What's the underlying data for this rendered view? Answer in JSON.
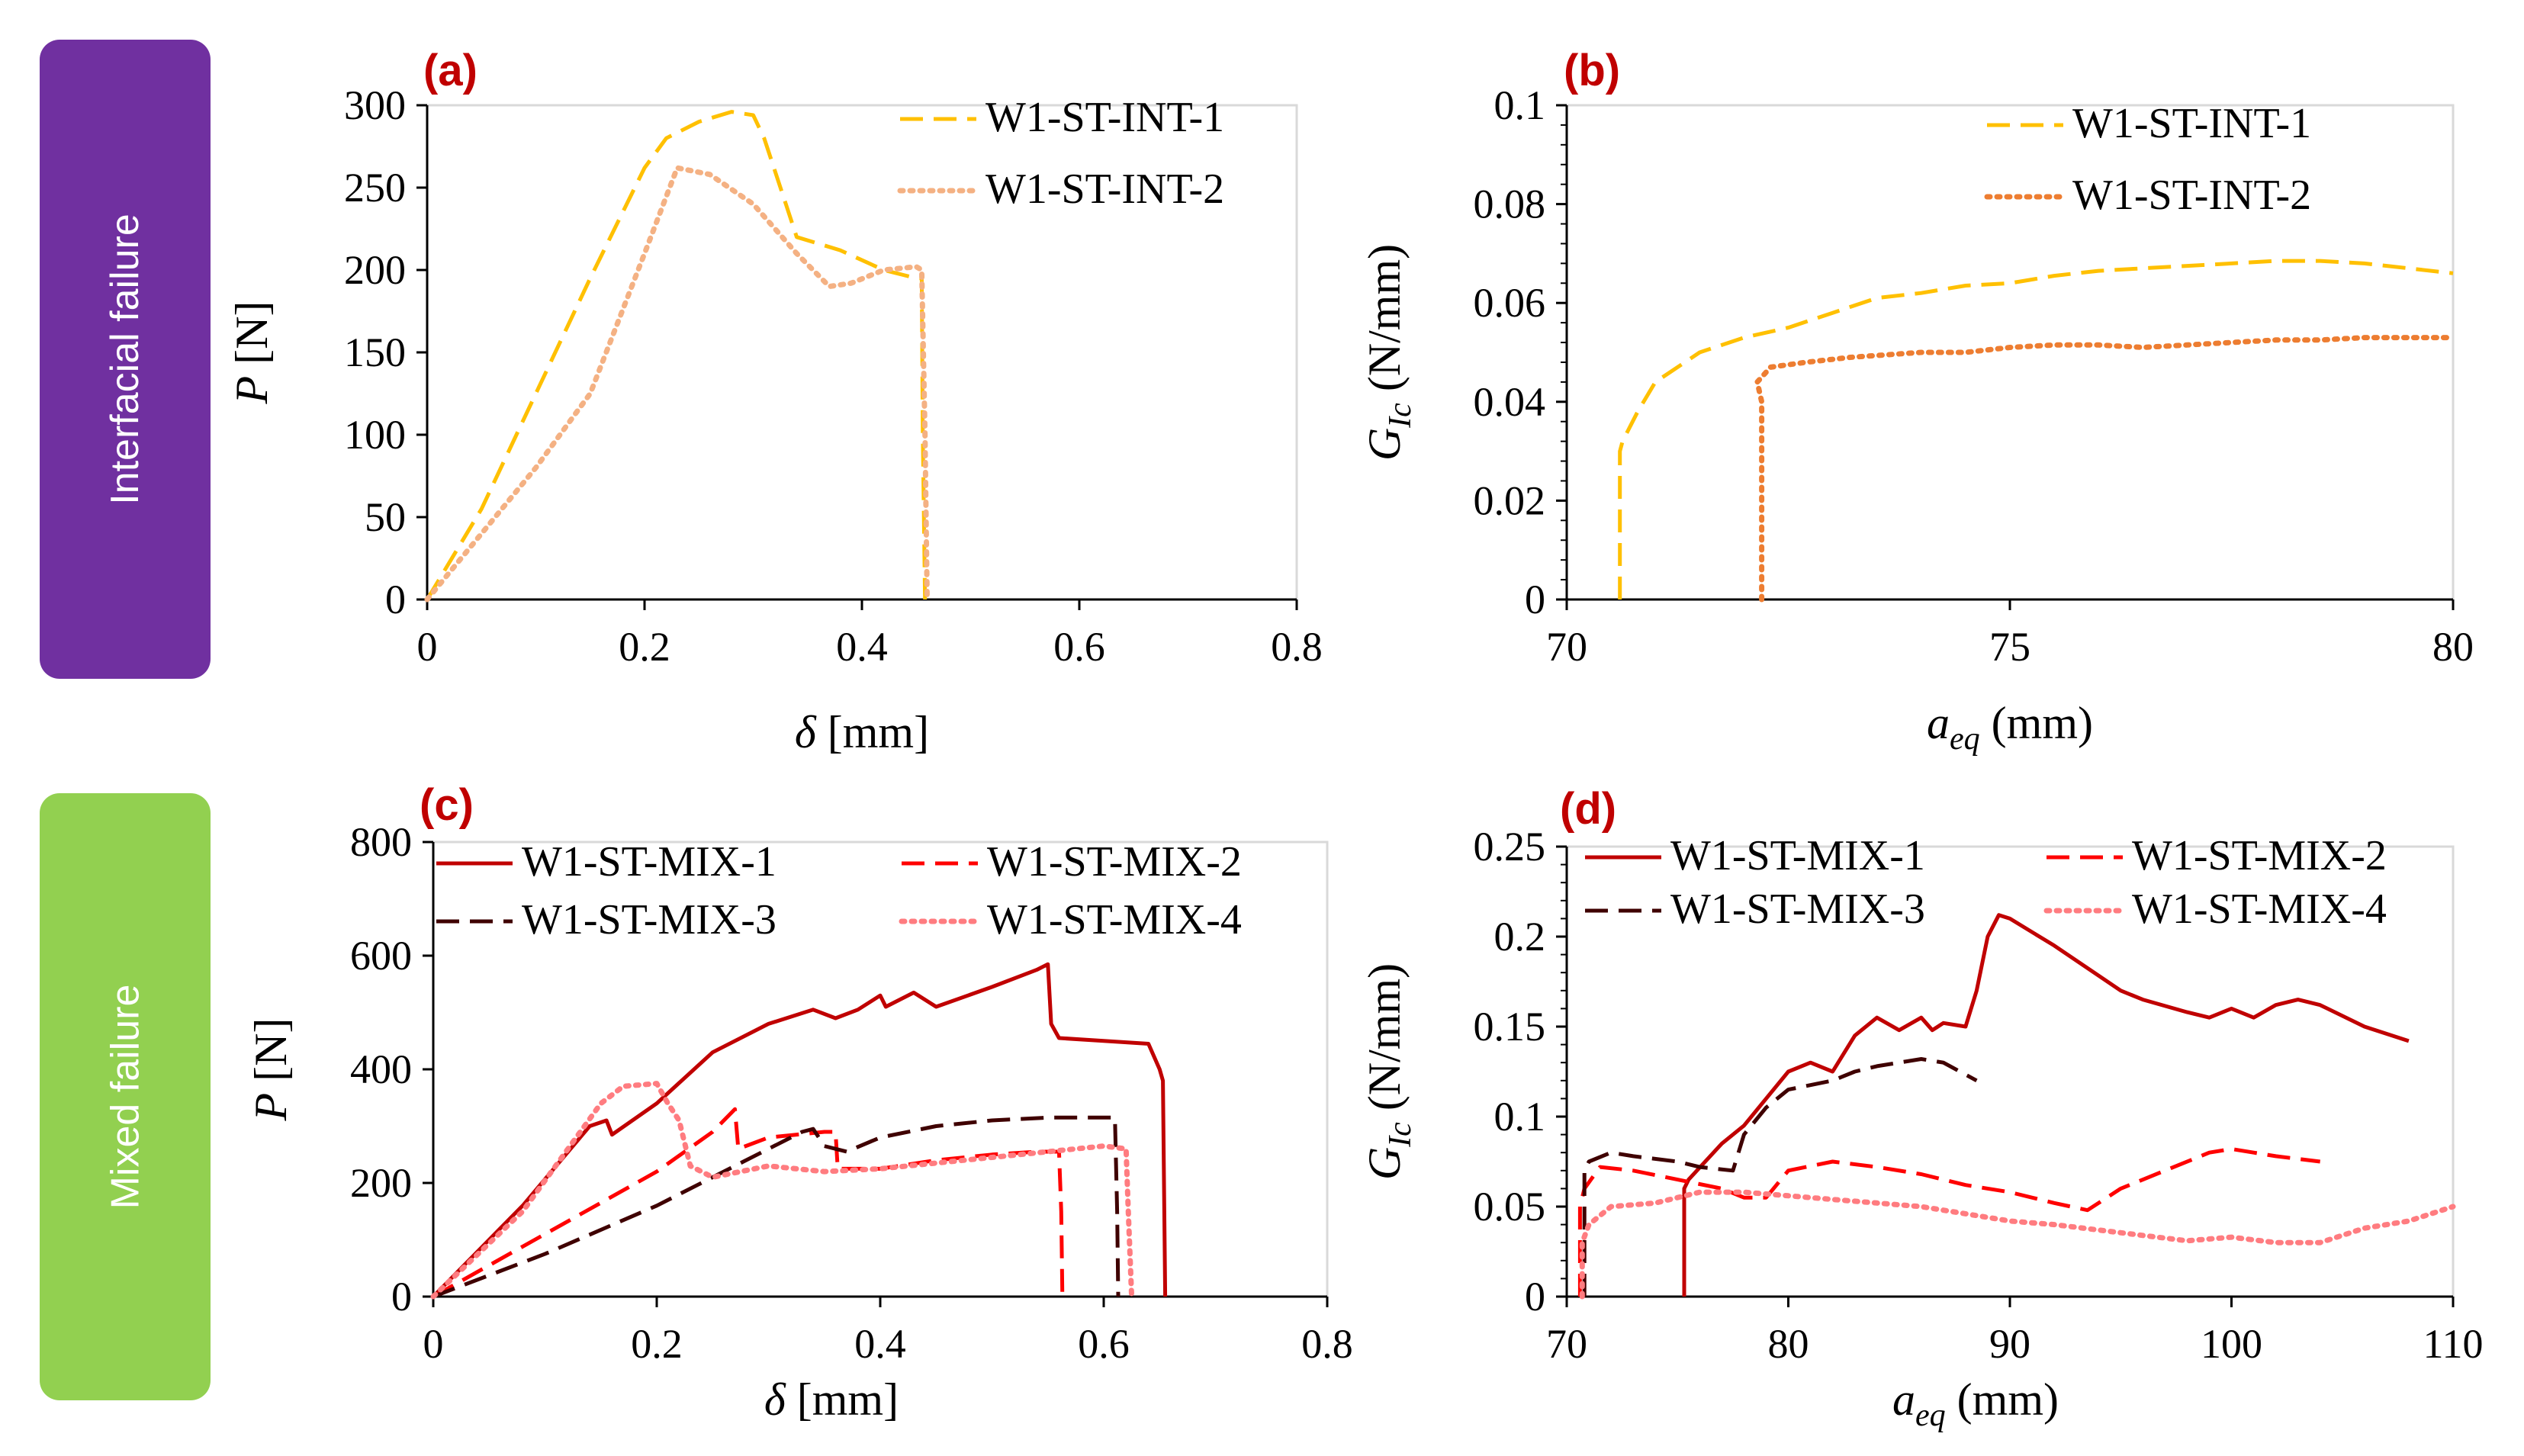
{
  "side_labels": [
    {
      "text": "Interfacial failure",
      "color": "#7030a0"
    },
    {
      "text": "Mixed failure",
      "color": "#92d050"
    }
  ],
  "chart_data": [
    {
      "panel": "(a)",
      "type": "line",
      "xlabel_symbol": "δ",
      "xlabel_unit": "[mm]",
      "ylabel_symbol": "P",
      "ylabel_unit": "[N]",
      "xlim": [
        0,
        0.8
      ],
      "ylim": [
        0,
        300
      ],
      "xticks": [
        0,
        0.2,
        0.4,
        0.6,
        0.8
      ],
      "xtick_labels": [
        "0",
        "0.2",
        "0.4",
        "0.6",
        "0.8"
      ],
      "yticks": [
        0,
        50,
        100,
        150,
        200,
        250,
        300
      ],
      "ytick_labels": [
        "0",
        "50",
        "100",
        "150",
        "200",
        "250",
        "300"
      ],
      "legend_position": "top-right",
      "legend_columns": 1,
      "series": [
        {
          "name": "W1-ST-INT-1",
          "color": "#ffc000",
          "style": "dashed",
          "x": [
            0,
            0.05,
            0.1,
            0.15,
            0.2,
            0.22,
            0.25,
            0.28,
            0.3,
            0.31,
            0.33,
            0.34,
            0.38,
            0.42,
            0.45,
            0.455,
            0.456,
            0.458
          ],
          "y": [
            0,
            55,
            125,
            195,
            262,
            280,
            290,
            296,
            294,
            280,
            240,
            220,
            212,
            200,
            195,
            195,
            100,
            0
          ]
        },
        {
          "name": "W1-ST-INT-2",
          "color": "#f4b183",
          "style": "dotted",
          "x": [
            0,
            0.05,
            0.1,
            0.15,
            0.2,
            0.23,
            0.26,
            0.3,
            0.34,
            0.37,
            0.39,
            0.42,
            0.45,
            0.455,
            0.458,
            0.46
          ],
          "y": [
            0,
            40,
            80,
            125,
            210,
            262,
            258,
            240,
            210,
            190,
            192,
            200,
            202,
            200,
            100,
            0
          ]
        }
      ]
    },
    {
      "panel": "(b)",
      "type": "line",
      "xlabel_symbol": "a",
      "xlabel_sub": "eq",
      "xlabel_unit": "(mm)",
      "ylabel_symbol": "G",
      "ylabel_sub": "Ic",
      "ylabel_unit": "(N/mm)",
      "xlim": [
        70,
        80
      ],
      "ylim": [
        0,
        0.1
      ],
      "xticks": [
        70,
        75,
        80
      ],
      "xtick_labels": [
        "70",
        "75",
        "80"
      ],
      "yticks": [
        0,
        0.02,
        0.04,
        0.06,
        0.08,
        0.1
      ],
      "ytick_labels": [
        "0",
        "0.02",
        "0.04",
        "0.06",
        "0.08",
        "0.1"
      ],
      "legend_position": "top-right",
      "legend_columns": 1,
      "series": [
        {
          "name": "W1-ST-INT-1",
          "color": "#ffc000",
          "style": "dashed",
          "x": [
            70.6,
            70.6,
            70.63,
            70.8,
            71,
            71.5,
            72,
            72.5,
            73,
            73.5,
            74,
            74.5,
            75,
            75.5,
            76,
            76.5,
            77,
            77.5,
            78,
            78.5,
            79,
            79.5,
            80
          ],
          "y": [
            0,
            0.03,
            0.032,
            0.038,
            0.044,
            0.05,
            0.053,
            0.055,
            0.058,
            0.061,
            0.062,
            0.0635,
            0.064,
            0.0655,
            0.0665,
            0.067,
            0.0675,
            0.068,
            0.0685,
            0.0685,
            0.068,
            0.067,
            0.066
          ]
        },
        {
          "name": "W1-ST-INT-2",
          "color": "#ed7d31",
          "style": "dotted",
          "x": [
            72.2,
            72.2,
            72.15,
            72.3,
            72.7,
            73.2,
            74,
            74.5,
            75,
            75.5,
            76,
            76.5,
            77,
            77.5,
            78,
            78.5,
            79,
            79.5,
            80
          ],
          "y": [
            0,
            0.04,
            0.044,
            0.047,
            0.048,
            0.049,
            0.05,
            0.05,
            0.051,
            0.0515,
            0.0515,
            0.051,
            0.0515,
            0.052,
            0.0525,
            0.0525,
            0.053,
            0.053,
            0.053
          ]
        }
      ]
    },
    {
      "panel": "(c)",
      "type": "line",
      "xlabel_symbol": "δ",
      "xlabel_unit": "[mm]",
      "ylabel_symbol": "P",
      "ylabel_unit": "[N]",
      "xlim": [
        0,
        0.8
      ],
      "ylim": [
        0,
        800
      ],
      "xticks": [
        0,
        0.2,
        0.4,
        0.6,
        0.8
      ],
      "xtick_labels": [
        "0",
        "0.2",
        "0.4",
        "0.6",
        "0.8"
      ],
      "yticks": [
        0,
        200,
        400,
        600,
        800
      ],
      "ytick_labels": [
        "0",
        "200",
        "400",
        "600",
        "800"
      ],
      "legend_position": "top",
      "legend_columns": 2,
      "series": [
        {
          "name": "W1-ST-MIX-1",
          "color": "#c00000",
          "style": "solid",
          "x": [
            0,
            0.08,
            0.14,
            0.155,
            0.16,
            0.2,
            0.25,
            0.3,
            0.34,
            0.36,
            0.38,
            0.4,
            0.405,
            0.43,
            0.45,
            0.5,
            0.54,
            0.55,
            0.553,
            0.56,
            0.6,
            0.64,
            0.65,
            0.653,
            0.655
          ],
          "y": [
            0,
            160,
            300,
            310,
            285,
            340,
            430,
            480,
            505,
            490,
            505,
            530,
            510,
            535,
            510,
            545,
            575,
            585,
            480,
            455,
            450,
            445,
            400,
            380,
            0
          ]
        },
        {
          "name": "W1-ST-MIX-2",
          "color": "#ff0000",
          "style": "dashed",
          "x": [
            0,
            0.1,
            0.2,
            0.25,
            0.27,
            0.273,
            0.3,
            0.35,
            0.36,
            0.362,
            0.4,
            0.45,
            0.5,
            0.54,
            0.56,
            0.562,
            0.563
          ],
          "y": [
            0,
            110,
            220,
            290,
            330,
            260,
            280,
            290,
            290,
            225,
            225,
            240,
            250,
            255,
            255,
            150,
            0
          ]
        },
        {
          "name": "W1-ST-MIX-3",
          "color": "#3f0000",
          "style": "dashed",
          "x": [
            0,
            0.1,
            0.2,
            0.25,
            0.3,
            0.33,
            0.34,
            0.35,
            0.37,
            0.4,
            0.45,
            0.5,
            0.55,
            0.6,
            0.61,
            0.612,
            0.613
          ],
          "y": [
            0,
            75,
            160,
            210,
            260,
            290,
            295,
            265,
            255,
            280,
            300,
            310,
            315,
            315,
            315,
            150,
            0
          ]
        },
        {
          "name": "W1-ST-MIX-4",
          "color": "#ff7c80",
          "style": "dotted",
          "x": [
            0,
            0.08,
            0.15,
            0.17,
            0.2,
            0.21,
            0.22,
            0.23,
            0.25,
            0.3,
            0.35,
            0.4,
            0.45,
            0.5,
            0.55,
            0.6,
            0.62,
            0.622,
            0.625
          ],
          "y": [
            0,
            150,
            340,
            370,
            375,
            340,
            310,
            230,
            210,
            230,
            220,
            225,
            235,
            245,
            255,
            265,
            260,
            150,
            0
          ]
        }
      ]
    },
    {
      "panel": "(d)",
      "type": "line",
      "xlabel_symbol": "a",
      "xlabel_sub": "eq",
      "xlabel_unit": "(mm)",
      "ylabel_symbol": "G",
      "ylabel_sub": "Ic",
      "ylabel_unit": "(N/mm)",
      "xlim": [
        70,
        110
      ],
      "ylim": [
        0,
        0.25
      ],
      "xticks": [
        70,
        80,
        90,
        100,
        110
      ],
      "xtick_labels": [
        "70",
        "80",
        "90",
        "100",
        "110"
      ],
      "yticks": [
        0,
        0.05,
        0.1,
        0.15,
        0.2,
        0.25
      ],
      "ytick_labels": [
        "0",
        "0.05",
        "0.1",
        "0.15",
        "0.2",
        "0.25"
      ],
      "legend_position": "top",
      "legend_columns": 2,
      "series": [
        {
          "name": "W1-ST-MIX-1",
          "color": "#c00000",
          "style": "solid",
          "x": [
            75.3,
            75.3,
            75.5,
            77,
            78,
            79,
            80,
            81,
            82,
            83,
            84,
            85,
            86,
            86.5,
            87,
            88,
            88.5,
            89,
            89.5,
            90,
            92,
            95,
            96,
            98,
            99,
            100,
            101,
            102,
            103,
            104,
            106,
            108
          ],
          "y": [
            0,
            0.06,
            0.065,
            0.085,
            0.095,
            0.11,
            0.125,
            0.13,
            0.125,
            0.145,
            0.155,
            0.148,
            0.155,
            0.148,
            0.152,
            0.15,
            0.17,
            0.2,
            0.212,
            0.21,
            0.195,
            0.17,
            0.165,
            0.158,
            0.155,
            0.16,
            0.155,
            0.162,
            0.165,
            0.162,
            0.15,
            0.142
          ]
        },
        {
          "name": "W1-ST-MIX-2",
          "color": "#ff0000",
          "style": "dashed",
          "x": [
            70.6,
            70.6,
            70.8,
            71.5,
            73,
            75,
            77,
            78,
            79,
            80,
            82,
            84,
            86,
            88,
            90,
            92,
            93.5,
            95,
            97,
            99,
            100,
            101,
            102,
            104
          ],
          "y": [
            0,
            0.05,
            0.06,
            0.072,
            0.07,
            0.065,
            0.06,
            0.055,
            0.055,
            0.07,
            0.075,
            0.072,
            0.068,
            0.062,
            0.058,
            0.052,
            0.048,
            0.06,
            0.07,
            0.08,
            0.082,
            0.08,
            0.078,
            0.075
          ]
        },
        {
          "name": "W1-ST-MIX-3",
          "color": "#3f0000",
          "style": "dashed",
          "x": [
            70.8,
            70.8,
            71,
            72,
            73,
            75,
            76,
            77.5,
            78,
            79,
            80,
            82,
            83,
            84,
            85,
            86,
            87,
            88.5
          ],
          "y": [
            0,
            0.07,
            0.075,
            0.08,
            0.078,
            0.075,
            0.072,
            0.07,
            0.09,
            0.105,
            0.115,
            0.12,
            0.125,
            0.128,
            0.13,
            0.132,
            0.13,
            0.12
          ]
        },
        {
          "name": "W1-ST-MIX-4",
          "color": "#ff7c80",
          "style": "dotted",
          "x": [
            70.7,
            70.7,
            71,
            72,
            74,
            76,
            78,
            80,
            82,
            84,
            86,
            88,
            90,
            92,
            94,
            96,
            98,
            100,
            102,
            104,
            106,
            108,
            110
          ],
          "y": [
            0,
            0.03,
            0.04,
            0.05,
            0.052,
            0.058,
            0.058,
            0.056,
            0.054,
            0.052,
            0.05,
            0.046,
            0.042,
            0.04,
            0.037,
            0.034,
            0.031,
            0.033,
            0.03,
            0.03,
            0.038,
            0.042,
            0.05
          ]
        }
      ]
    }
  ]
}
